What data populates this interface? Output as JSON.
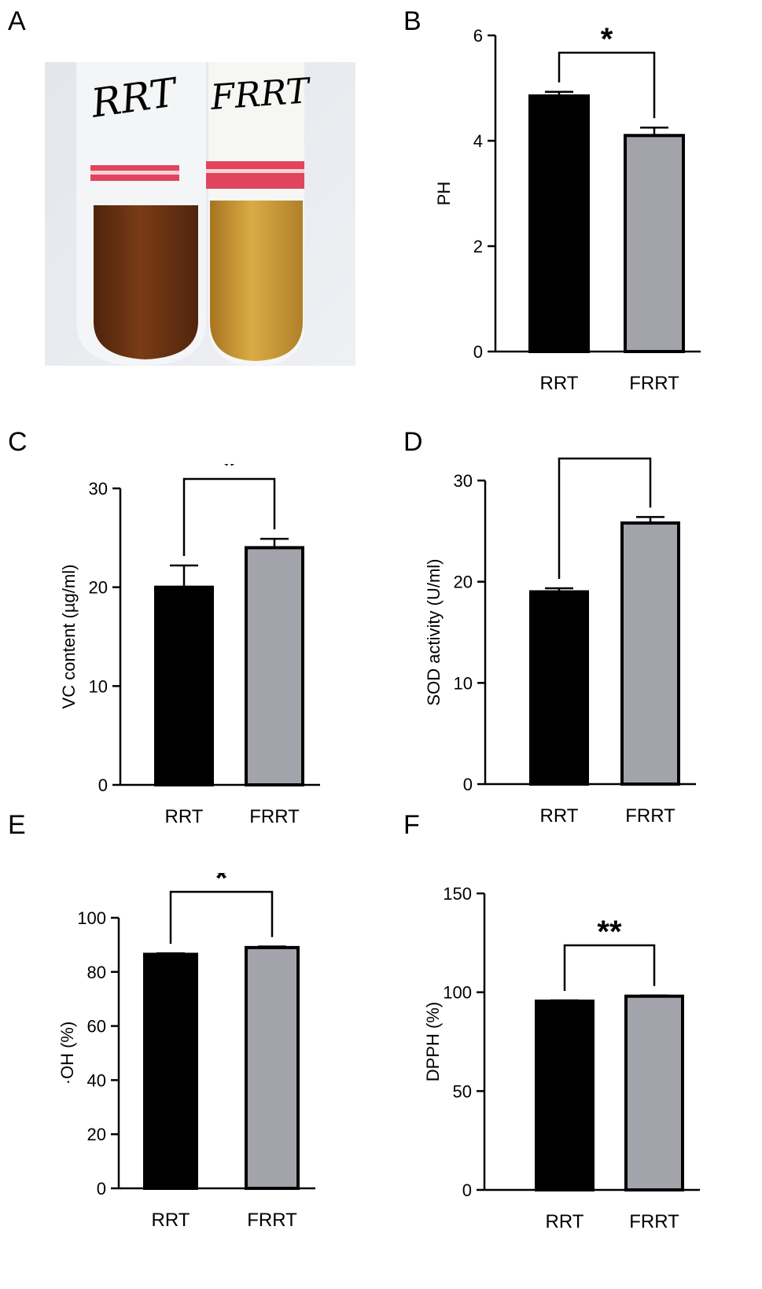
{
  "figure": {
    "panel_letters": [
      "A",
      "B",
      "C",
      "D",
      "E",
      "F"
    ],
    "photo": {
      "tube_labels": [
        "RRT",
        "FRRT"
      ],
      "colors": {
        "rrt_liquid": "#6e3513",
        "frrt_liquid": "#c9962e",
        "band": "#e0455b",
        "background": "#e9ebf1"
      }
    }
  },
  "chart_data": [
    {
      "panel": "B",
      "type": "bar",
      "categories": [
        "RRT",
        "FRRT"
      ],
      "values": [
        4.85,
        4.1
      ],
      "errors": [
        0.08,
        0.15
      ],
      "ylabel": "PH",
      "ylim": [
        0,
        6
      ],
      "yticks": [
        0,
        2,
        4,
        6
      ],
      "significance": "*",
      "colors": [
        "#000000",
        "#a3a4ab"
      ]
    },
    {
      "panel": "C",
      "type": "bar",
      "categories": [
        "RRT",
        "FRRT"
      ],
      "values": [
        20.0,
        24.0
      ],
      "errors": [
        2.2,
        0.9
      ],
      "ylabel": "VC content (µg/ml)",
      "ylim": [
        0,
        30
      ],
      "yticks": [
        0,
        10,
        20,
        30
      ],
      "significance": "*",
      "colors": [
        "#000000",
        "#a3a4ab"
      ]
    },
    {
      "panel": "D",
      "type": "bar",
      "categories": [
        "RRT",
        "FRRT"
      ],
      "values": [
        19.0,
        25.8
      ],
      "errors": [
        0.35,
        0.6
      ],
      "ylabel": "SOD activity (U/ml)",
      "ylim": [
        0,
        30
      ],
      "yticks": [
        0,
        10,
        20,
        30
      ],
      "significance": "***",
      "colors": [
        "#000000",
        "#a3a4ab"
      ]
    },
    {
      "panel": "E",
      "type": "bar",
      "categories": [
        "RRT",
        "FRRT"
      ],
      "values": [
        86.5,
        89.0
      ],
      "errors": [
        0.4,
        0.4
      ],
      "ylabel": "·OH (%)",
      "ylim": [
        0,
        100
      ],
      "yticks": [
        0,
        20,
        40,
        60,
        80,
        100
      ],
      "significance": "*",
      "colors": [
        "#000000",
        "#a3a4ab"
      ]
    },
    {
      "panel": "F",
      "type": "bar",
      "categories": [
        "RRT",
        "FRRT"
      ],
      "values": [
        95.5,
        98.0
      ],
      "errors": [
        0.4,
        0.4
      ],
      "ylabel": "DPPH (%)",
      "ylim": [
        0,
        150
      ],
      "yticks": [
        0,
        50,
        100,
        150
      ],
      "significance": "**",
      "colors": [
        "#000000",
        "#a3a4ab"
      ]
    }
  ]
}
